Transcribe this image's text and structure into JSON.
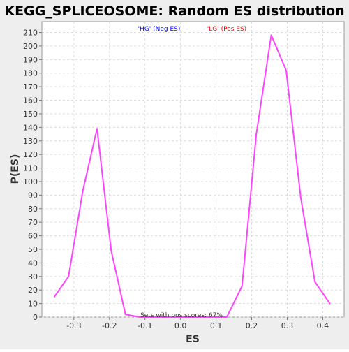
{
  "chart_data": {
    "type": "line",
    "title": "KEGG_SPLICEOSOME: Random ES distribution",
    "xlabel": "ES",
    "ylabel": "P(ES)",
    "xlim": [
      -0.39,
      0.46
    ],
    "ylim": [
      0,
      218
    ],
    "x_ticks": [
      -0.3,
      -0.2,
      -0.1,
      0.0,
      0.1,
      0.2,
      0.3,
      0.4
    ],
    "x_tick_labels": [
      "-0.3",
      "-0.2",
      "-0.1",
      "0.0",
      "0.1",
      "0.2",
      "0.3",
      "0.4"
    ],
    "y_ticks": [
      0,
      10,
      20,
      30,
      40,
      50,
      60,
      70,
      80,
      90,
      100,
      110,
      120,
      130,
      140,
      150,
      160,
      170,
      180,
      190,
      200,
      210
    ],
    "grid": true,
    "legend": [
      {
        "label": "'HG' (Neg ES)",
        "color": "#0000ff"
      },
      {
        "label": "'LG' (Pos ES)",
        "color": "#ff0000"
      }
    ],
    "annotation": "Sets with pos scores: 67%",
    "series": [
      {
        "color": "#ff44ff",
        "x": [
          -0.355,
          -0.315,
          -0.275,
          -0.235,
          -0.195,
          -0.155,
          -0.115,
          -0.075,
          -0.035,
          0.005,
          0.045,
          0.085,
          0.13,
          0.173,
          0.213,
          0.255,
          0.297,
          0.338,
          0.378,
          0.42
        ],
        "y": [
          15,
          30,
          93,
          139,
          49,
          2,
          0,
          0,
          0,
          0,
          0,
          0,
          0,
          23,
          135,
          208,
          182,
          88,
          26,
          10
        ]
      }
    ]
  }
}
